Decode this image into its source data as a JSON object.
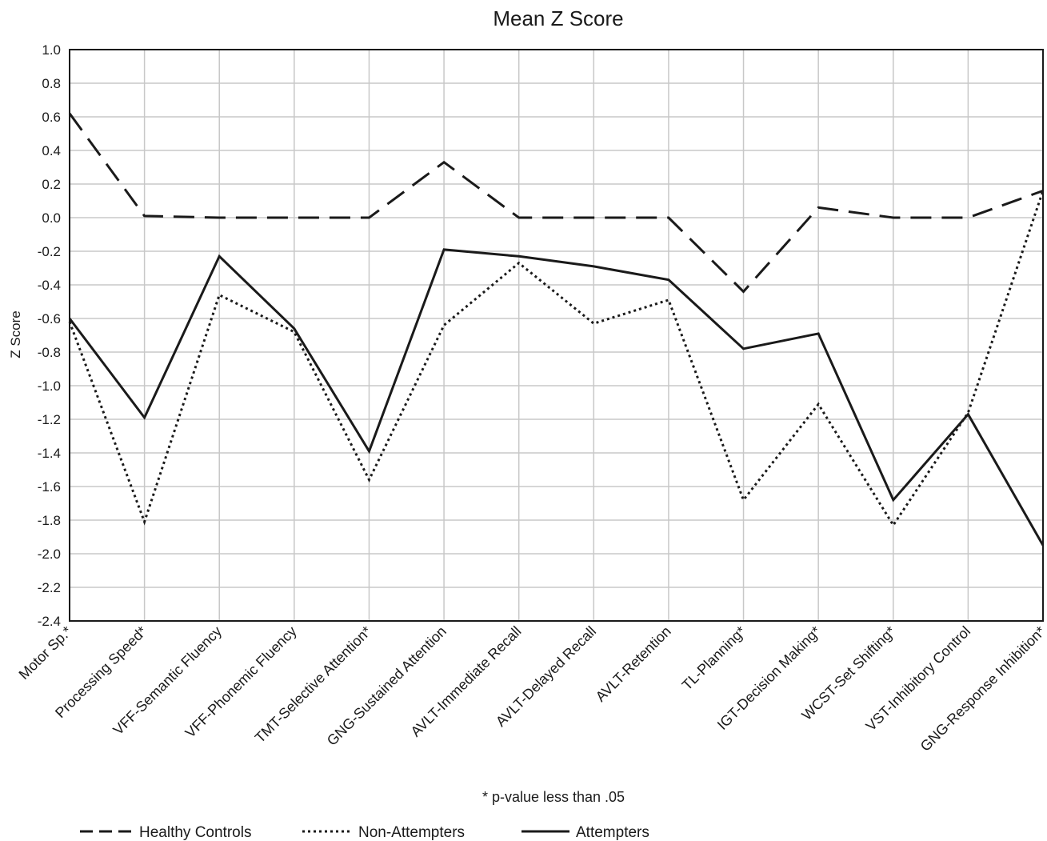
{
  "chart_data": {
    "type": "line",
    "title": "Mean Z Score",
    "ylabel": "Z Score",
    "xlabel": "",
    "ylim": [
      -2.4,
      1.0
    ],
    "ytick_step": 0.2,
    "grid": true,
    "legend_position": "bottom",
    "footnote": "* p-value less than .05",
    "categories": [
      "Motor Sp.*",
      "Processing Speed*",
      "VFF-Semantic Fluency",
      "VFF-Phonemic Fluency",
      "TMT-Selective Attention*",
      "GNG-Sustained Attention",
      "AVLT-Immediate Recall",
      "AVLT-Delayed Recall",
      "AVLT-Retention",
      "TL-Planning*",
      "IGT-Decision Making*",
      "WCST-Set Shifting*",
      "VST-Inhibitory Control",
      "GNG-Response Inhibition*"
    ],
    "series": [
      {
        "name": "Healthy Controls",
        "style": "dashed",
        "values": [
          0.62,
          0.01,
          0.0,
          0.0,
          0.0,
          0.33,
          0.0,
          0.0,
          0.0,
          -0.44,
          0.06,
          0.0,
          0.0,
          0.16
        ]
      },
      {
        "name": "Non-Attempters",
        "style": "dotted",
        "values": [
          -0.62,
          -1.81,
          -0.46,
          -0.68,
          -1.56,
          -0.64,
          -0.27,
          -0.63,
          -0.49,
          -1.68,
          -1.11,
          -1.83,
          -1.16,
          0.16
        ]
      },
      {
        "name": "Attempters",
        "style": "solid",
        "values": [
          -0.6,
          -1.19,
          -0.23,
          -0.66,
          -1.39,
          -0.19,
          -0.23,
          -0.29,
          -0.37,
          -0.78,
          -0.69,
          -1.68,
          -1.17,
          -1.95
        ]
      }
    ],
    "colors": {
      "line": "#1a1a1a",
      "grid": "#c8c8c8",
      "axis": "#1a1a1a"
    }
  }
}
